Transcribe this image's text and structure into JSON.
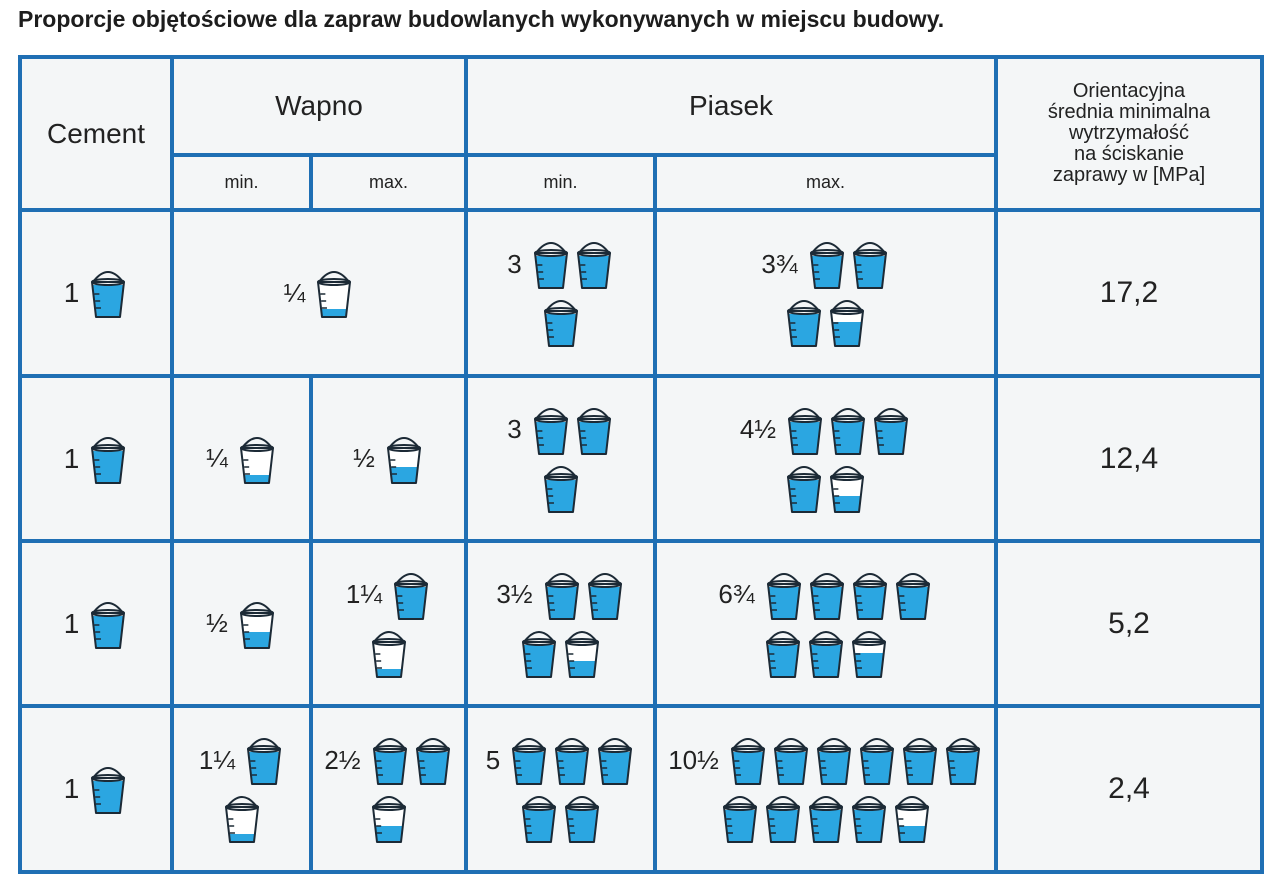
{
  "title": "Proporcje objętościowe dla zapraw budowlanych wykonywanych w miejscu budowy.",
  "header": {
    "cement": "Cement",
    "wapno": "Wapno",
    "piasek": "Piasek",
    "strength": [
      "Orientacyjna",
      "średnia minimalna",
      "wytrzymałość",
      "na ściskanie",
      "zaprawy w [MPa]"
    ],
    "sub": [
      "min.",
      "max.",
      "min.",
      "max."
    ]
  },
  "rows": [
    {
      "cement": "1",
      "wapno": [
        "¼"
      ],
      "piasek": [
        "3",
        "3¾"
      ],
      "strength": "17,2"
    },
    {
      "cement": "1",
      "wapno": [
        "¼",
        "½"
      ],
      "piasek": [
        "3",
        "4½"
      ],
      "strength": "12,4"
    },
    {
      "cement": "1",
      "wapno": [
        "½",
        "1¼"
      ],
      "piasek": [
        "3½",
        "6¾"
      ],
      "strength": "5,2"
    },
    {
      "cement": "1",
      "wapno": [
        "1¼",
        "2½"
      ],
      "piasek": [
        "5",
        "10½"
      ],
      "strength": "2,4"
    }
  ]
}
